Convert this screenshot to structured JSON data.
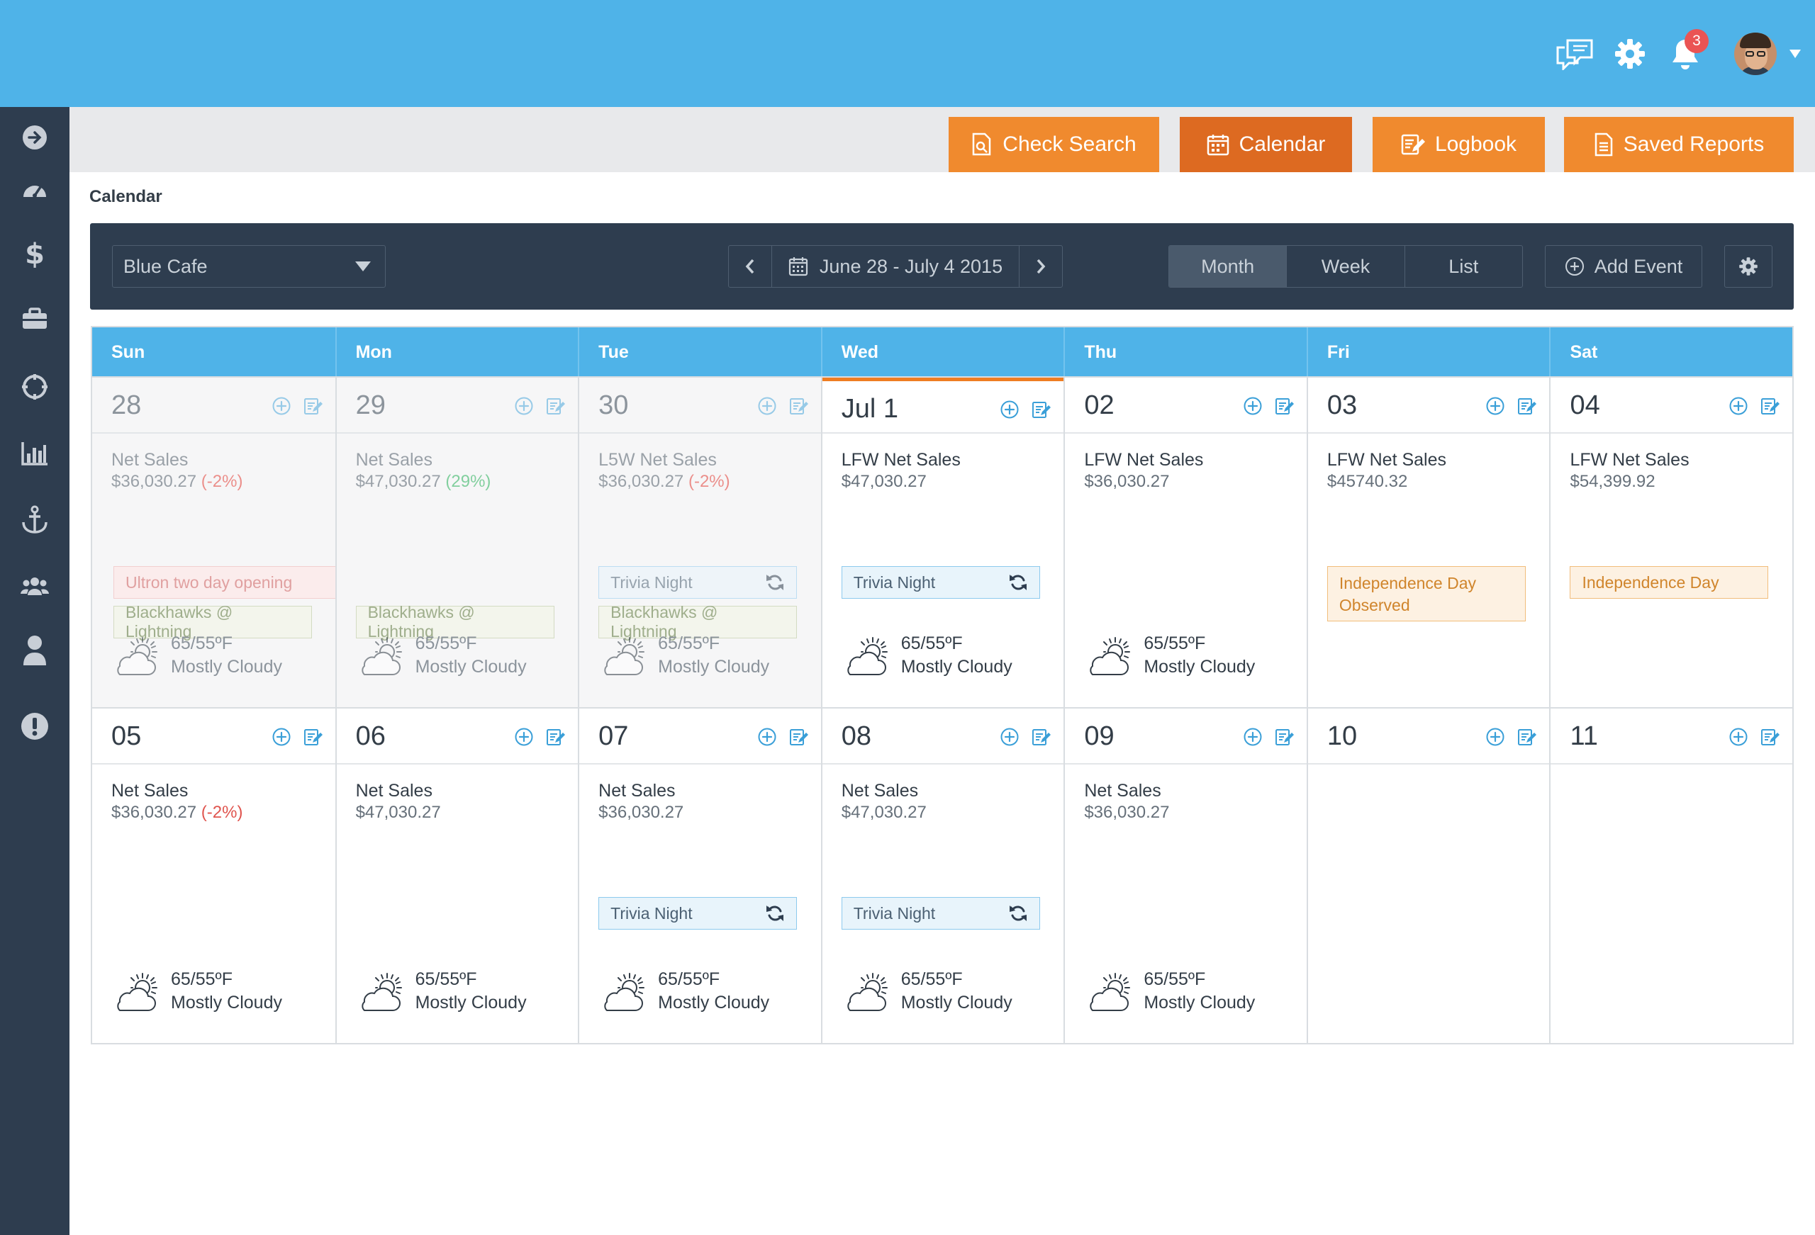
{
  "header": {
    "notification_count": "3"
  },
  "nav_buttons": [
    {
      "label": "Check Search"
    },
    {
      "label": "Calendar"
    },
    {
      "label": "Logbook"
    },
    {
      "label": "Saved Reports"
    }
  ],
  "page_title": "Calendar",
  "toolbar": {
    "location": "Blue Cafe",
    "date_range": "June 28 - July 4 2015",
    "views": [
      "Month",
      "Week",
      "List"
    ],
    "active_view": "Month",
    "add_event": "Add Event"
  },
  "weekdays": [
    "Sun",
    "Mon",
    "Tue",
    "Wed",
    "Thu",
    "Fri",
    "Sat"
  ],
  "weeks": [
    {
      "days": [
        {
          "num": "28",
          "sales_label": "Net Sales",
          "sales_value": "$36,030.27",
          "pct": "(-2%)",
          "pct_type": "neg",
          "weather": {
            "temp": "65/55ºF",
            "desc": "Mostly Cloudy"
          }
        },
        {
          "num": "29",
          "sales_label": "Net Sales",
          "sales_value": "$47,030.27",
          "pct": "(29%)",
          "pct_type": "pos",
          "weather": {
            "temp": "65/55ºF",
            "desc": "Mostly Cloudy"
          }
        },
        {
          "num": "30",
          "sales_label": "L5W Net Sales",
          "sales_value": "$36,030.27",
          "pct": "(-2%)",
          "pct_type": "neg",
          "weather": {
            "temp": "65/55ºF",
            "desc": "Mostly Cloudy"
          }
        },
        {
          "num": "Jul 1",
          "sales_label": "LFW Net Sales",
          "sales_value": "$47,030.27",
          "weather": {
            "temp": "65/55ºF",
            "desc": "Mostly Cloudy"
          }
        },
        {
          "num": "02",
          "sales_label": "LFW Net Sales",
          "sales_value": "$36,030.27",
          "weather": {
            "temp": "65/55ºF",
            "desc": "Mostly Cloudy"
          }
        },
        {
          "num": "03",
          "sales_label": "LFW Net Sales",
          "sales_value": "$45740.32"
        },
        {
          "num": "04",
          "sales_label": "LFW Net Sales",
          "sales_value": "$54,399.92"
        }
      ]
    },
    {
      "days": [
        {
          "num": "05",
          "sales_label": "Net Sales",
          "sales_value": "$36,030.27",
          "pct": "(-2%)",
          "pct_type": "neg",
          "weather": {
            "temp": "65/55ºF",
            "desc": "Mostly Cloudy"
          }
        },
        {
          "num": "06",
          "sales_label": "Net Sales",
          "sales_value": "$47,030.27",
          "weather": {
            "temp": "65/55ºF",
            "desc": "Mostly Cloudy"
          }
        },
        {
          "num": "07",
          "sales_label": "Net Sales",
          "sales_value": "$36,030.27",
          "weather": {
            "temp": "65/55ºF",
            "desc": "Mostly Cloudy"
          }
        },
        {
          "num": "08",
          "sales_label": "Net Sales",
          "sales_value": "$47,030.27",
          "weather": {
            "temp": "65/55ºF",
            "desc": "Mostly Cloudy"
          }
        },
        {
          "num": "09",
          "sales_label": "Net Sales",
          "sales_value": "$36,030.27",
          "weather": {
            "temp": "65/55ºF",
            "desc": "Mostly Cloudy"
          }
        },
        {
          "num": "10"
        },
        {
          "num": "11"
        }
      ]
    }
  ],
  "events": {
    "ultron": "Ultron two day opening",
    "blackhawks": "Blackhawks @ Lightning",
    "trivia": "Trivia Night",
    "independence_observed": "Independence Day Observed",
    "independence": "Independence Day"
  },
  "colors": {
    "brand_blue": "#4fb3e8",
    "sidebar": "#2e3d4f",
    "orange": "#f08a2e",
    "orange_active": "#dd6a21",
    "negative": "#e0554f",
    "positive": "#3bb56a"
  }
}
